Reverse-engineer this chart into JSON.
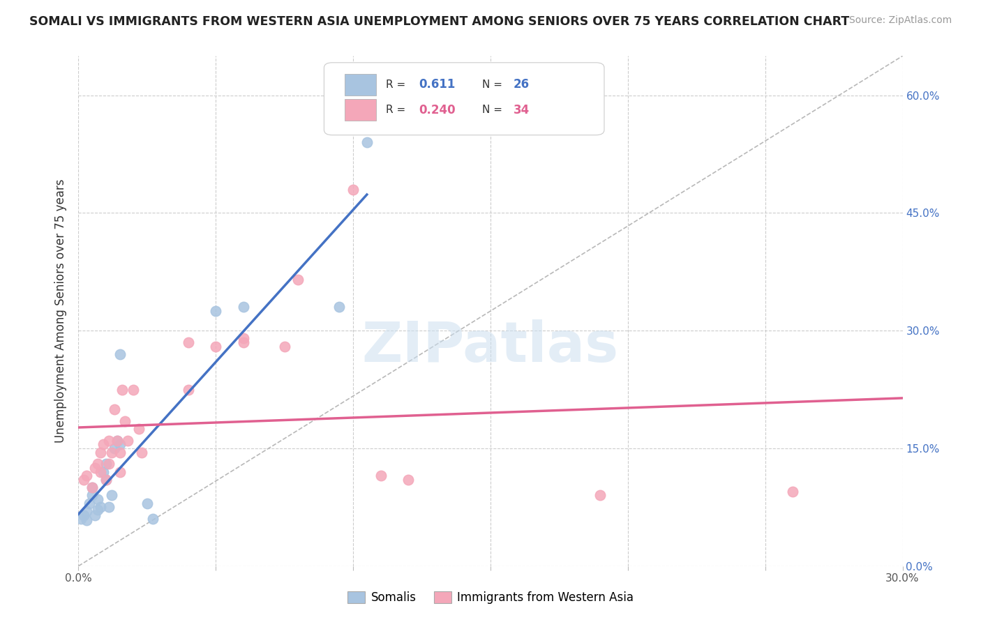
{
  "title": "SOMALI VS IMMIGRANTS FROM WESTERN ASIA UNEMPLOYMENT AMONG SENIORS OVER 75 YEARS CORRELATION CHART",
  "source": "Source: ZipAtlas.com",
  "ylabel": "Unemployment Among Seniors over 75 years",
  "xlim": [
    0.0,
    0.3
  ],
  "ylim": [
    0.0,
    0.65
  ],
  "x_ticks": [
    0.0,
    0.05,
    0.1,
    0.15,
    0.2,
    0.25,
    0.3
  ],
  "x_tick_labels": [
    "0.0%",
    "",
    "",
    "",
    "",
    "",
    "30.0%"
  ],
  "y_ticks_right": [
    0.0,
    0.15,
    0.3,
    0.45,
    0.6
  ],
  "y_tick_labels_right": [
    "0.0%",
    "15.0%",
    "30.0%",
    "45.0%",
    "60.0%"
  ],
  "somali_R": "0.611",
  "somali_N": "26",
  "western_asia_R": "0.240",
  "western_asia_N": "34",
  "somali_color": "#a8c4e0",
  "western_asia_color": "#f4a7b9",
  "somali_line_color": "#4472C4",
  "western_asia_line_color": "#E06090",
  "trend_line_color": "#b8b8b8",
  "watermark_text": "ZIPatlas",
  "somali_x": [
    0.001,
    0.002,
    0.003,
    0.003,
    0.004,
    0.005,
    0.005,
    0.006,
    0.007,
    0.007,
    0.008,
    0.009,
    0.01,
    0.01,
    0.011,
    0.012,
    0.013,
    0.014,
    0.015,
    0.015,
    0.025,
    0.027,
    0.05,
    0.06,
    0.095,
    0.105
  ],
  "somali_y": [
    0.06,
    0.065,
    0.058,
    0.07,
    0.08,
    0.09,
    0.1,
    0.065,
    0.072,
    0.085,
    0.075,
    0.12,
    0.11,
    0.13,
    0.075,
    0.09,
    0.15,
    0.16,
    0.27,
    0.155,
    0.08,
    0.06,
    0.325,
    0.33,
    0.33,
    0.54
  ],
  "western_asia_x": [
    0.002,
    0.003,
    0.005,
    0.006,
    0.007,
    0.008,
    0.008,
    0.009,
    0.01,
    0.011,
    0.011,
    0.012,
    0.013,
    0.014,
    0.015,
    0.015,
    0.016,
    0.017,
    0.018,
    0.02,
    0.022,
    0.023,
    0.04,
    0.04,
    0.05,
    0.06,
    0.06,
    0.075,
    0.08,
    0.1,
    0.11,
    0.12,
    0.19,
    0.26
  ],
  "western_asia_y": [
    0.11,
    0.115,
    0.1,
    0.125,
    0.13,
    0.12,
    0.145,
    0.155,
    0.11,
    0.13,
    0.16,
    0.145,
    0.2,
    0.16,
    0.12,
    0.145,
    0.225,
    0.185,
    0.16,
    0.225,
    0.175,
    0.145,
    0.225,
    0.285,
    0.28,
    0.29,
    0.285,
    0.28,
    0.365,
    0.48,
    0.115,
    0.11,
    0.09,
    0.095
  ],
  "legend_items": [
    "Somalis",
    "Immigrants from Western Asia"
  ],
  "background_color": "#ffffff",
  "grid_color": "#cccccc",
  "figsize": [
    14.06,
    8.92
  ],
  "dpi": 100
}
